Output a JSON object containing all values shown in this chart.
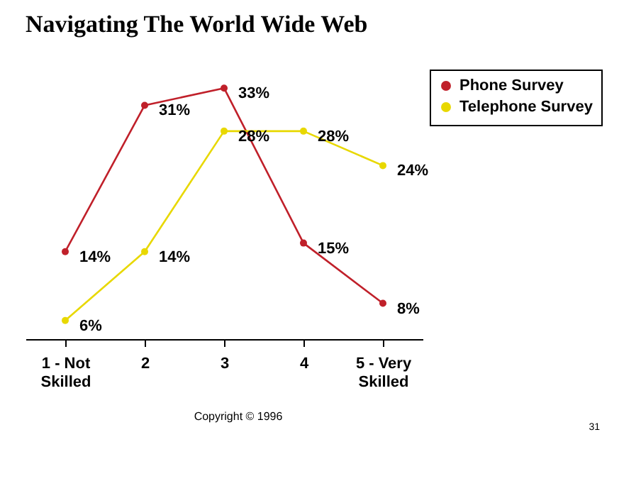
{
  "chart_data": {
    "type": "line",
    "title": "Navigating The World Wide Web",
    "categories": [
      "1 - Not Skilled",
      "2",
      "3",
      "4",
      "5 - Very Skilled"
    ],
    "series": [
      {
        "name": "Phone Survey",
        "color": "#c0202a",
        "values": [
          14,
          31,
          33,
          15,
          8
        ],
        "value_labels": [
          "14%",
          "31%",
          "33%",
          "15%",
          "8%"
        ]
      },
      {
        "name": "Telephone Survey",
        "color": "#e8d800",
        "values": [
          6,
          14,
          28,
          28,
          24
        ],
        "value_labels": [
          "6%",
          "14%",
          "28%",
          "28%",
          "24%"
        ]
      }
    ],
    "legend": "top right",
    "grid": false,
    "marker": "circle",
    "line_style": "solid",
    "annotations": [
      "Copyright © 1996",
      "31"
    ]
  }
}
